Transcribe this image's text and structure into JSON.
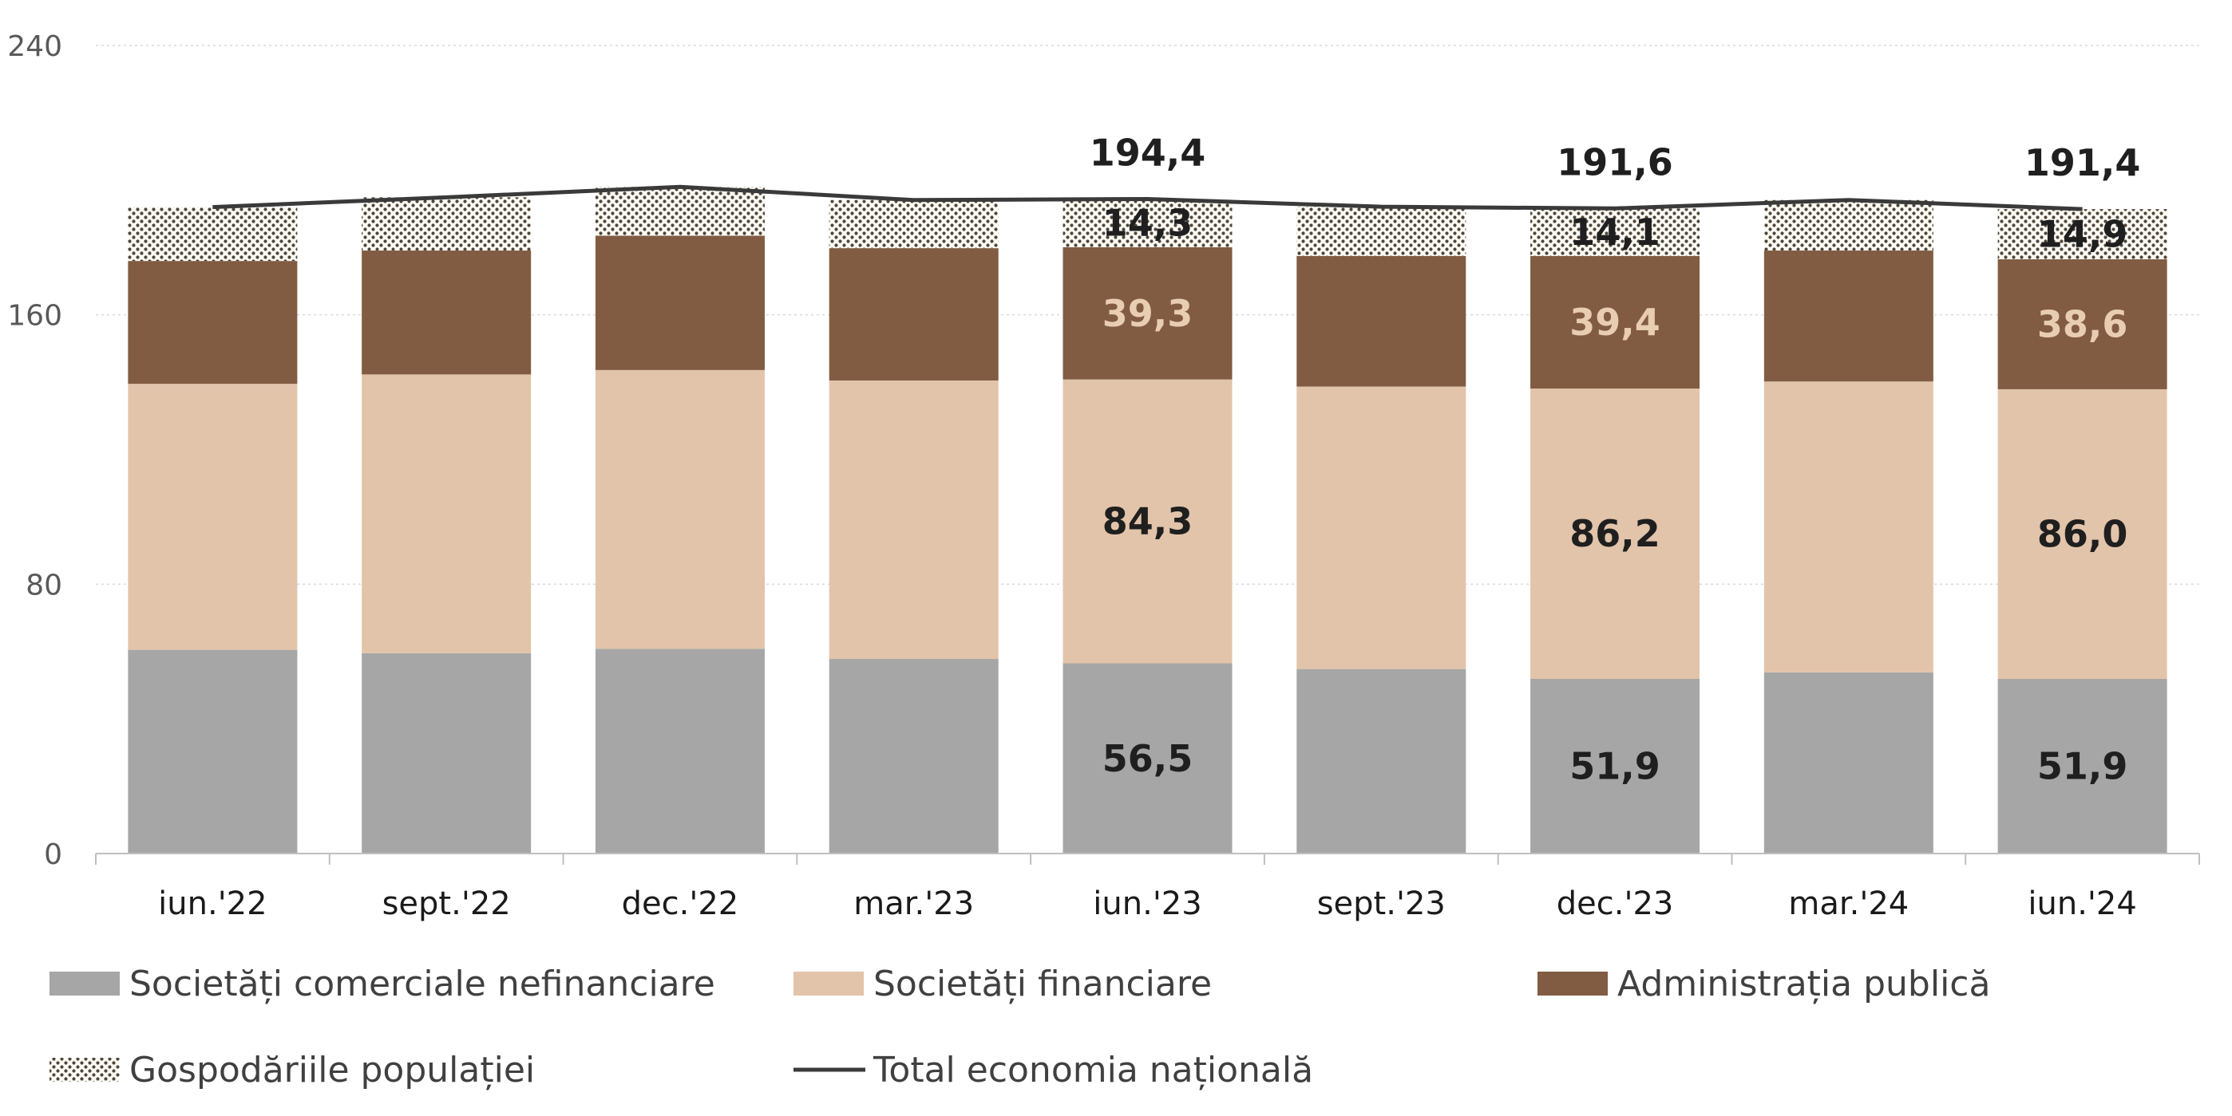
{
  "colors": {
    "nonfin": "#a6a6a6",
    "fin": "#e2c4aa",
    "admin": "#815c42",
    "households_bg": "#fdfbf6",
    "households_fg": "#4f4538",
    "total": "#3a3a3a",
    "label_dark": "#1f1f1f",
    "label_light": "#e9cdb2"
  },
  "chart_data": {
    "type": "bar",
    "stacked": true,
    "categories": [
      "iun.'22",
      "sept.'22",
      "dec.'22",
      "mar.'23",
      "iun.'23",
      "sept.'23",
      "dec.'23",
      "mar.'24",
      "iun.'24"
    ],
    "ylim": [
      0,
      240
    ],
    "yticks": [
      "0",
      "80",
      "160",
      "240"
    ],
    "grid": true,
    "legend_position": "bottom",
    "series": [
      {
        "key": "nonfin",
        "name": "Societăți comerciale nefinanciare",
        "values": [
          60.5,
          59.5,
          60.8,
          57.8,
          56.5,
          54.8,
          51.9,
          53.8,
          51.9
        ],
        "labels": [
          "",
          "",
          "",
          "",
          "56,5",
          "",
          "51,9",
          "",
          "51,9"
        ],
        "label_color": "label_dark"
      },
      {
        "key": "fin",
        "name": "Societăți financiare",
        "values": [
          79.0,
          82.8,
          82.8,
          82.7,
          84.3,
          83.9,
          86.2,
          86.4,
          86.0
        ],
        "labels": [
          "",
          "",
          "",
          "",
          "84,3",
          "",
          "86,2",
          "",
          "86,0"
        ],
        "label_color": "label_dark"
      },
      {
        "key": "admin",
        "name": "Administrația publică",
        "values": [
          36.5,
          36.8,
          39.9,
          39.3,
          39.3,
          38.8,
          39.4,
          38.9,
          38.6
        ],
        "labels": [
          "",
          "",
          "",
          "",
          "39,3",
          "",
          "39,4",
          "",
          "38,6"
        ],
        "label_color": "label_light"
      },
      {
        "key": "households",
        "name": "Gospodăriile populației",
        "values": [
          16.0,
          15.8,
          14.5,
          14.3,
          14.3,
          14.6,
          14.1,
          15.0,
          14.9
        ],
        "labels": [
          "",
          "",
          "",
          "",
          "14,3",
          "",
          "14,1",
          "",
          "14,9"
        ],
        "label_color": "label_dark"
      }
    ],
    "total": {
      "name": "Total economia națională",
      "values": [
        192.0,
        194.9,
        198.0,
        194.1,
        194.4,
        192.1,
        191.6,
        194.1,
        191.4
      ],
      "labels": [
        "",
        "",
        "",
        "",
        "194,4",
        "",
        "191,6",
        "",
        "191,4"
      ]
    }
  }
}
